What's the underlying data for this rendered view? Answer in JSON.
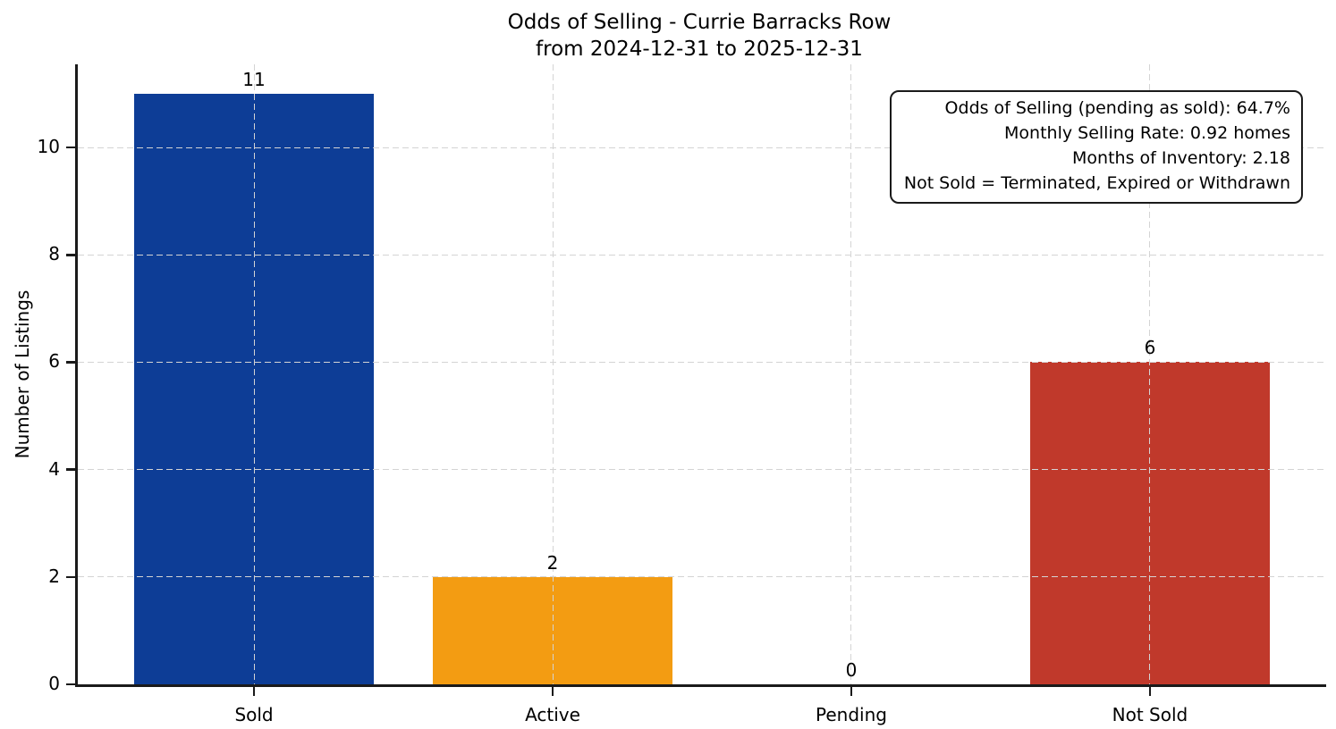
{
  "chart_data": {
    "type": "bar",
    "title": "Odds of Selling - Currie Barracks Row",
    "subtitle": "from 2024-12-31 to 2025-12-31",
    "categories": [
      "Sold",
      "Active",
      "Pending",
      "Not Sold"
    ],
    "values": [
      11,
      2,
      0,
      6
    ],
    "value_labels": [
      "11",
      "2",
      "0",
      "6"
    ],
    "bar_colors": [
      "#0d3d96",
      "#f39c12",
      null,
      "#c0392b"
    ],
    "xlabel": "",
    "ylabel": "Number of Listings",
    "yticks": [
      0,
      2,
      4,
      6,
      8,
      10
    ],
    "ylim": [
      0,
      11.55
    ],
    "grid": true,
    "legend_position": "none",
    "annotation": {
      "lines": [
        "Odds of Selling (pending as sold): 64.7%",
        "Monthly Selling Rate: 0.92 homes",
        "Months of Inventory: 2.18",
        "Not Sold = Terminated, Expired or Withdrawn"
      ]
    }
  }
}
